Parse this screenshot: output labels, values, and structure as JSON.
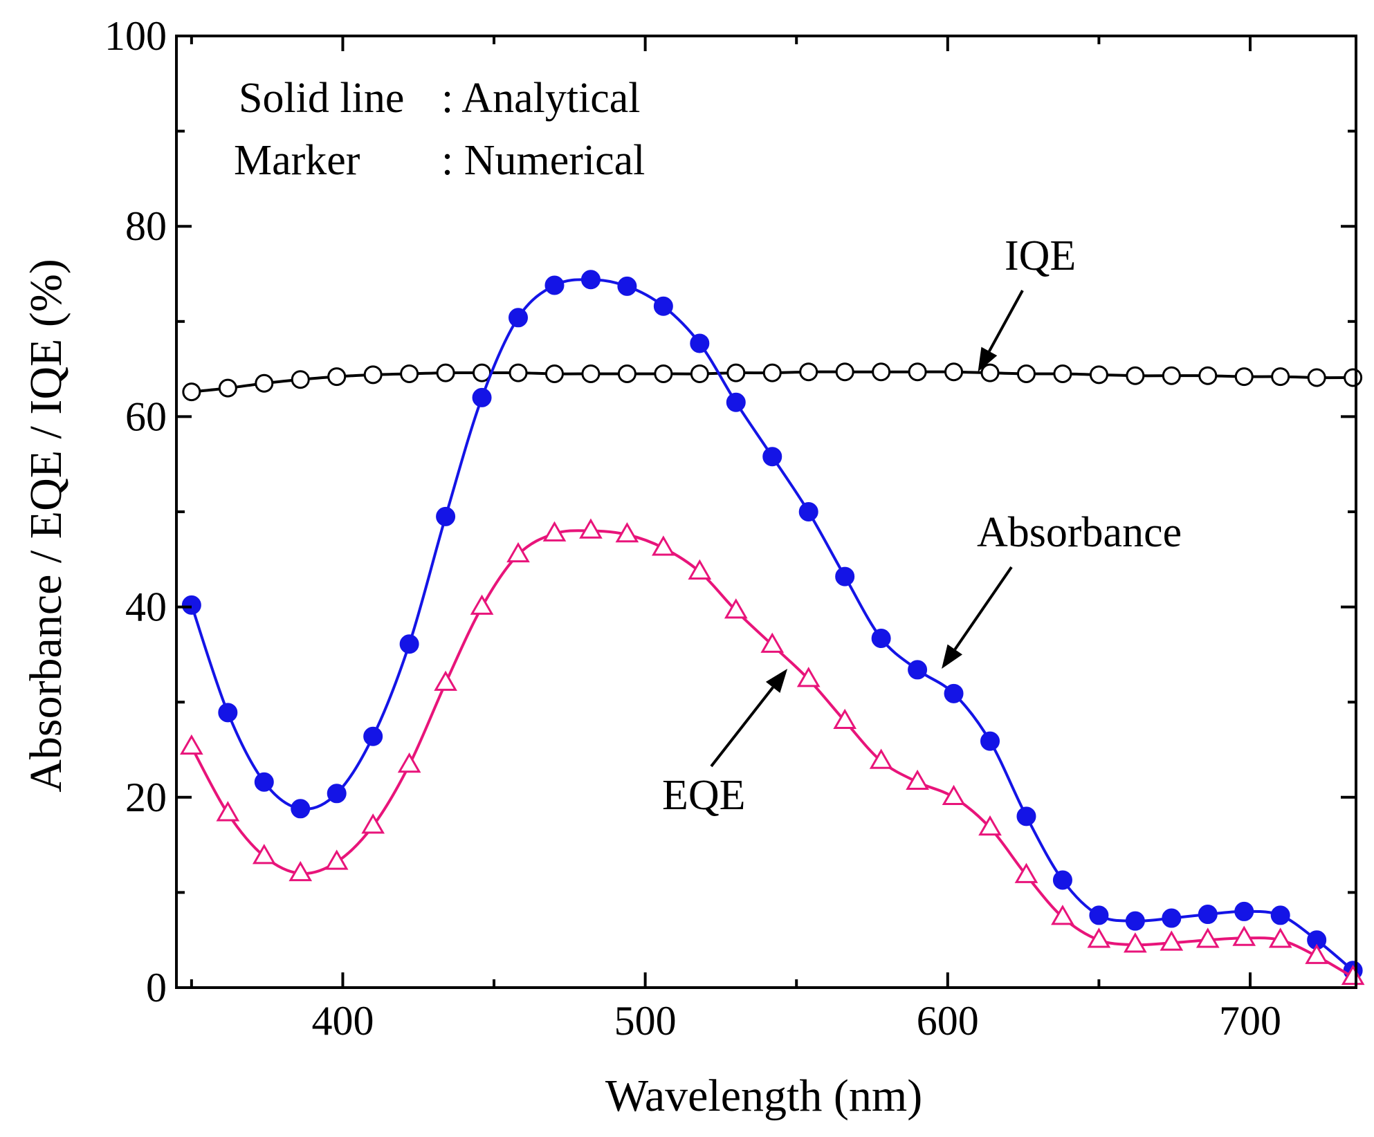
{
  "chart_data": {
    "type": "line",
    "title": "",
    "xlabel": "Wavelength (nm)",
    "ylabel": "Absorbance / EQE / IQE (%)",
    "xlim": [
      345,
      735
    ],
    "ylim": [
      0,
      100
    ],
    "xticks": [
      400,
      500,
      600,
      700
    ],
    "yticks": [
      0,
      20,
      40,
      60,
      80,
      100
    ],
    "grid": false,
    "notes": {
      "line1_left": "Solid line",
      "line1_right": ": Analytical",
      "line2_left": "Marker",
      "line2_right": ": Numerical"
    },
    "x": [
      350,
      362,
      374,
      386,
      398,
      410,
      422,
      434,
      446,
      458,
      470,
      482,
      494,
      506,
      518,
      530,
      542,
      554,
      566,
      578,
      590,
      602,
      614,
      626,
      638,
      650,
      662,
      674,
      686,
      698,
      710,
      722,
      734
    ],
    "series": [
      {
        "name": "IQE",
        "color": "#000000",
        "marker": "open-circle",
        "values": [
          62.6,
          63.0,
          63.5,
          63.9,
          64.2,
          64.4,
          64.5,
          64.6,
          64.6,
          64.6,
          64.5,
          64.5,
          64.5,
          64.5,
          64.5,
          64.6,
          64.6,
          64.7,
          64.7,
          64.7,
          64.7,
          64.7,
          64.6,
          64.5,
          64.5,
          64.4,
          64.3,
          64.3,
          64.3,
          64.2,
          64.2,
          64.1,
          64.1
        ]
      },
      {
        "name": "Absorbance",
        "color": "#1414e6",
        "marker": "filled-circle",
        "values": [
          40.2,
          28.9,
          21.6,
          18.8,
          20.4,
          26.4,
          36.1,
          49.5,
          62.0,
          70.4,
          73.8,
          74.4,
          73.7,
          71.6,
          67.7,
          61.5,
          55.8,
          50.0,
          43.2,
          36.7,
          33.4,
          30.9,
          25.9,
          18.0,
          11.3,
          7.6,
          7.0,
          7.3,
          7.7,
          8.0,
          7.6,
          5.0,
          1.8
        ]
      },
      {
        "name": "EQE",
        "color": "#e8147a",
        "marker": "open-triangle",
        "values": [
          25.3,
          18.3,
          13.8,
          12.0,
          13.2,
          17.0,
          23.4,
          32.0,
          40.0,
          45.5,
          47.7,
          48.0,
          47.6,
          46.2,
          43.7,
          39.6,
          36.0,
          32.4,
          28.0,
          23.8,
          21.6,
          20.0,
          16.8,
          11.8,
          7.4,
          5.0,
          4.5,
          4.7,
          5.0,
          5.2,
          5.0,
          3.3,
          1.1
        ]
      }
    ],
    "annotations": [
      {
        "text": "IQE",
        "arrow_to": [
          610,
          64.7
        ]
      },
      {
        "text": "Absorbance",
        "arrow_to": [
          598,
          33.5
        ]
      },
      {
        "text": "EQE",
        "arrow_to": [
          547,
          33.5
        ]
      }
    ]
  }
}
